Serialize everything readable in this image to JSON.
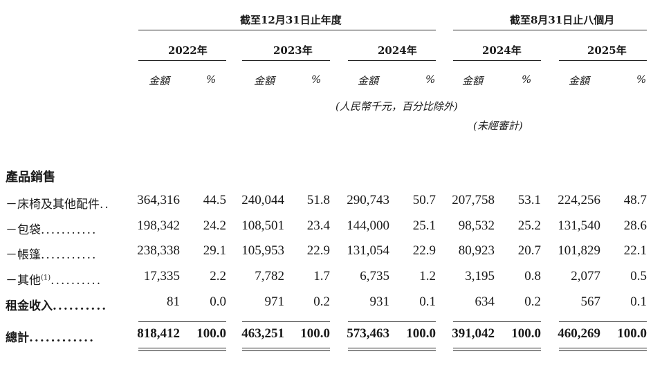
{
  "header": {
    "period_year": "截至12月31日止年度",
    "period_months": "截至8月31日止八個月",
    "years": [
      "2022年",
      "2023年",
      "2024年",
      "2024年",
      "2025年"
    ],
    "amount_label": "金額",
    "pct_label": "%",
    "unit_note": "(人民幣千元，百分比除外)",
    "unaudited_note": "(未經審計)"
  },
  "section_title": "產品銷售",
  "rows": [
    {
      "label": "－床椅及其他配件",
      "dots": "..",
      "sup": "",
      "values": [
        "364,316",
        "44.5",
        "240,044",
        "51.8",
        "290,743",
        "50.7",
        "207,758",
        "53.1",
        "224,256",
        "48.7"
      ]
    },
    {
      "label": "－包袋",
      "dots": "...........",
      "sup": "",
      "values": [
        "198,342",
        "24.2",
        "108,501",
        "23.4",
        "144,000",
        "25.1",
        "98,532",
        "25.2",
        "131,540",
        "28.6"
      ]
    },
    {
      "label": "－帳篷",
      "dots": "...........",
      "sup": "",
      "values": [
        "238,338",
        "29.1",
        "105,953",
        "22.9",
        "131,054",
        "22.9",
        "80,923",
        "20.7",
        "101,829",
        "22.1"
      ]
    },
    {
      "label": "－其他",
      "dots": "..........",
      "sup": "(1)",
      "values": [
        "17,335",
        "2.2",
        "7,782",
        "1.7",
        "6,735",
        "1.2",
        "3,195",
        "0.8",
        "2,077",
        "0.5"
      ]
    },
    {
      "label": "租金收入",
      "dots": "..........",
      "sup": "",
      "values": [
        "81",
        "0.0",
        "971",
        "0.2",
        "931",
        "0.1",
        "634",
        "0.2",
        "567",
        "0.1"
      ]
    }
  ],
  "total": {
    "label": "總計",
    "dots": "............",
    "values": [
      "818,412",
      "100.0",
      "463,251",
      "100.0",
      "573,463",
      "100.0",
      "391,042",
      "100.0",
      "460,269",
      "100.0"
    ]
  }
}
